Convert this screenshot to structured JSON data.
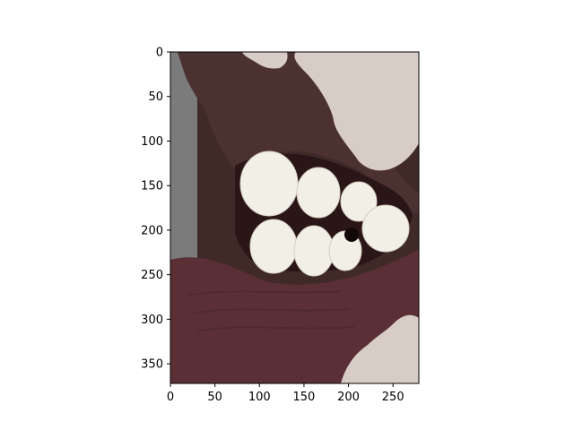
{
  "figure": {
    "background": "#ffffff"
  },
  "axes": {
    "x_ticks": [
      "0",
      "50",
      "100",
      "150",
      "200",
      "250"
    ],
    "y_ticks": [
      "0",
      "50",
      "100",
      "150",
      "200",
      "250",
      "300",
      "350"
    ],
    "x_lim": [
      0,
      279
    ],
    "y_lim": [
      372,
      0
    ],
    "spine_color": "#000000"
  },
  "image": {
    "subject": "close-up of open mouth with teeth, segmentation-masked photo",
    "colors": {
      "left_background": "#7b7b7b",
      "skin": "#3f2a28",
      "upper_lip": "#4b3230",
      "lower_lip": "#5a3036",
      "mask_fill": "#d8ccc6",
      "teeth": "#f2efe7",
      "mouth_dark": "#2a1616"
    }
  }
}
